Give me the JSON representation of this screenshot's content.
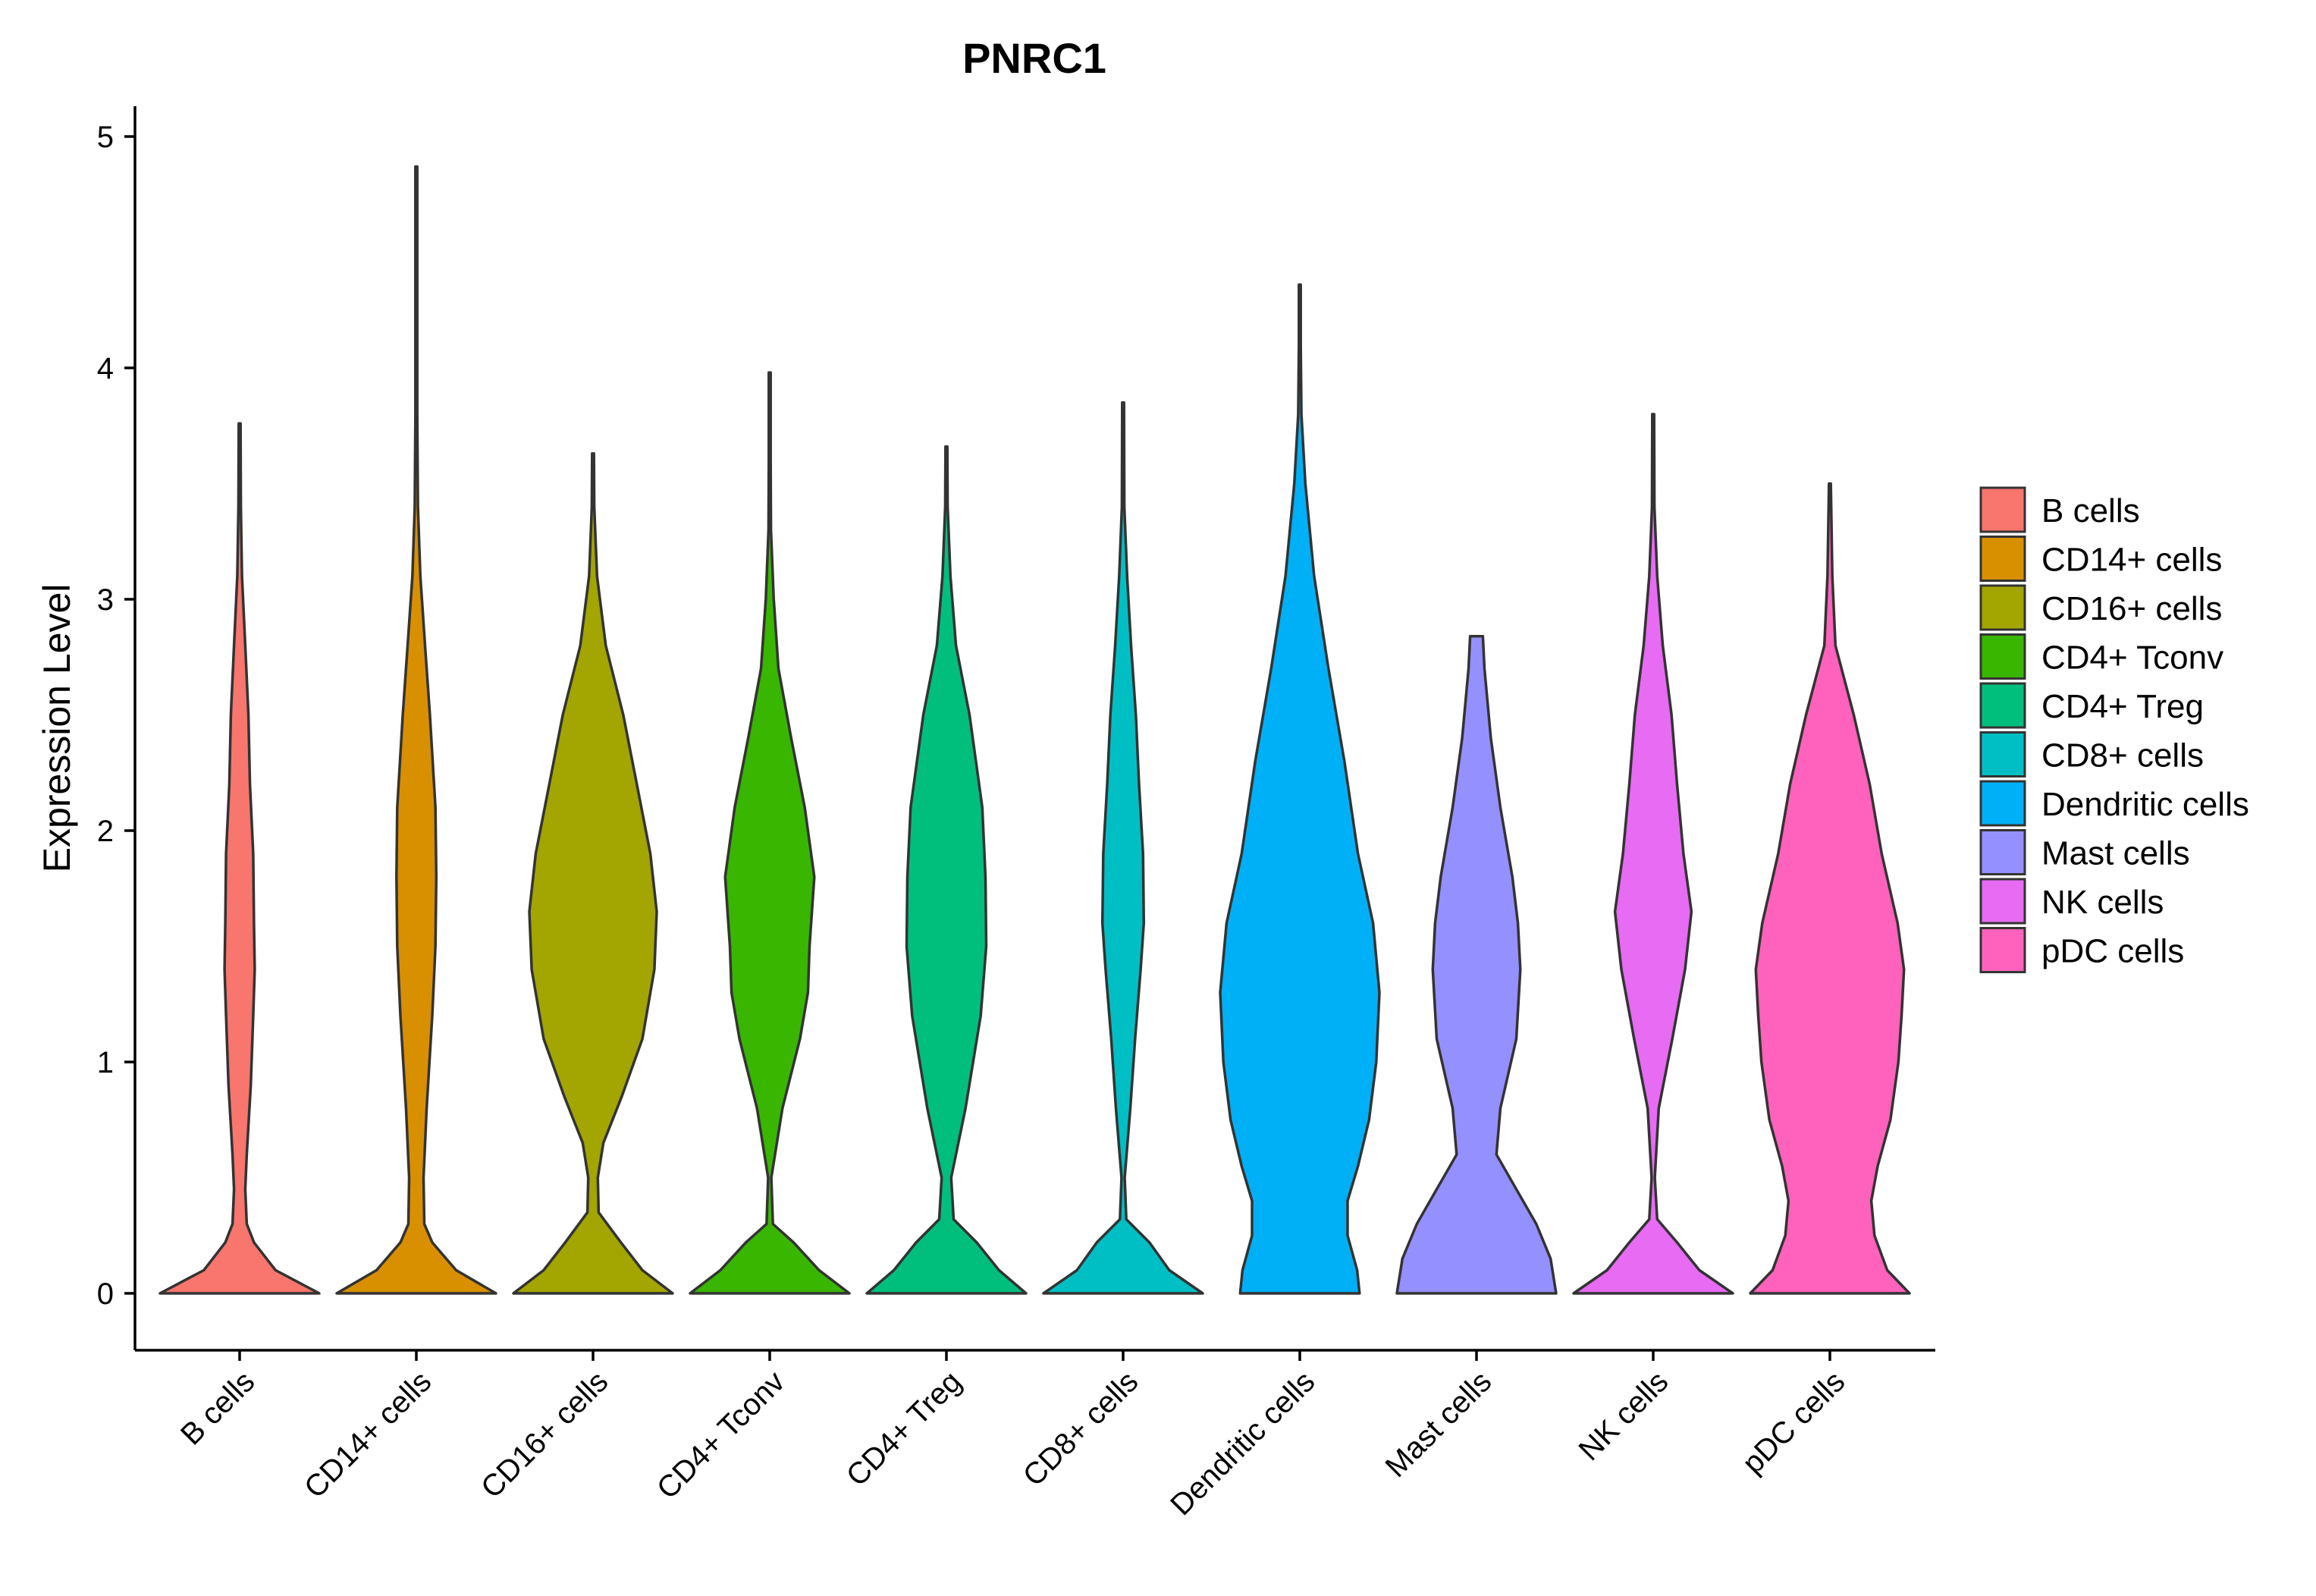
{
  "chart_data": {
    "type": "violin",
    "title": "PNRC1",
    "xlabel": "",
    "ylabel": "Expression Level",
    "ylim": [
      -0.25,
      5.1
    ],
    "yticks": [
      0,
      1,
      2,
      3,
      4,
      5
    ],
    "grid": false,
    "legend_position": "right",
    "categories": [
      "B cells",
      "CD14+ cells",
      "CD16+ cells",
      "CD4+ Tconv",
      "CD4+ Treg",
      "CD8+ cells",
      "Dendritic cells",
      "Mast cells",
      "NK cells",
      "pDC cells"
    ],
    "colors": [
      "#F8766D",
      "#D89000",
      "#A3A500",
      "#39B600",
      "#00BF7D",
      "#00BFC4",
      "#00B0F6",
      "#9590FF",
      "#E76BF3",
      "#FF62BC"
    ],
    "violins": [
      {
        "name": "B cells",
        "max": 3.76,
        "profile": [
          [
            0,
            1.0
          ],
          [
            0.1,
            0.45
          ],
          [
            0.22,
            0.18
          ],
          [
            0.3,
            0.09
          ],
          [
            0.45,
            0.07
          ],
          [
            0.6,
            0.09
          ],
          [
            0.9,
            0.14
          ],
          [
            1.2,
            0.17
          ],
          [
            1.4,
            0.19
          ],
          [
            1.6,
            0.18
          ],
          [
            1.9,
            0.17
          ],
          [
            2.2,
            0.13
          ],
          [
            2.5,
            0.11
          ],
          [
            2.8,
            0.07
          ],
          [
            3.1,
            0.03
          ],
          [
            3.4,
            0.015
          ],
          [
            3.76,
            0.005
          ]
        ]
      },
      {
        "name": "CD14+ cells",
        "max": 4.87,
        "profile": [
          [
            0,
            1.0
          ],
          [
            0.1,
            0.5
          ],
          [
            0.22,
            0.2
          ],
          [
            0.3,
            0.1
          ],
          [
            0.5,
            0.09
          ],
          [
            0.8,
            0.13
          ],
          [
            1.2,
            0.2
          ],
          [
            1.5,
            0.24
          ],
          [
            1.8,
            0.25
          ],
          [
            2.1,
            0.24
          ],
          [
            2.5,
            0.17
          ],
          [
            2.8,
            0.11
          ],
          [
            3.1,
            0.05
          ],
          [
            3.4,
            0.02
          ],
          [
            3.8,
            0.01
          ],
          [
            4.3,
            0.005
          ],
          [
            4.87,
            0.003
          ]
        ]
      },
      {
        "name": "CD16+ cells",
        "max": 3.63,
        "profile": [
          [
            0,
            1.0
          ],
          [
            0.1,
            0.62
          ],
          [
            0.22,
            0.35
          ],
          [
            0.35,
            0.07
          ],
          [
            0.5,
            0.06
          ],
          [
            0.65,
            0.13
          ],
          [
            0.85,
            0.36
          ],
          [
            1.1,
            0.62
          ],
          [
            1.4,
            0.77
          ],
          [
            1.65,
            0.8
          ],
          [
            1.9,
            0.72
          ],
          [
            2.2,
            0.55
          ],
          [
            2.5,
            0.38
          ],
          [
            2.8,
            0.16
          ],
          [
            3.1,
            0.05
          ],
          [
            3.4,
            0.015
          ],
          [
            3.63,
            0.005
          ]
        ]
      },
      {
        "name": "CD4+ Tconv",
        "max": 3.98,
        "profile": [
          [
            0,
            1.0
          ],
          [
            0.1,
            0.62
          ],
          [
            0.22,
            0.3
          ],
          [
            0.3,
            0.04
          ],
          [
            0.5,
            0.02
          ],
          [
            0.8,
            0.16
          ],
          [
            1.1,
            0.38
          ],
          [
            1.3,
            0.48
          ],
          [
            1.5,
            0.5
          ],
          [
            1.8,
            0.56
          ],
          [
            2.1,
            0.44
          ],
          [
            2.4,
            0.27
          ],
          [
            2.7,
            0.11
          ],
          [
            3.0,
            0.05
          ],
          [
            3.3,
            0.015
          ],
          [
            3.6,
            0.008
          ],
          [
            3.98,
            0.003
          ]
        ]
      },
      {
        "name": "CD4+ Treg",
        "max": 3.66,
        "profile": [
          [
            0,
            1.0
          ],
          [
            0.1,
            0.66
          ],
          [
            0.22,
            0.38
          ],
          [
            0.32,
            0.09
          ],
          [
            0.5,
            0.06
          ],
          [
            0.8,
            0.24
          ],
          [
            1.2,
            0.43
          ],
          [
            1.5,
            0.5
          ],
          [
            1.8,
            0.49
          ],
          [
            2.1,
            0.45
          ],
          [
            2.5,
            0.29
          ],
          [
            2.8,
            0.12
          ],
          [
            3.1,
            0.05
          ],
          [
            3.4,
            0.015
          ],
          [
            3.66,
            0.005
          ]
        ]
      },
      {
        "name": "CD8+ cells",
        "max": 3.85,
        "profile": [
          [
            0,
            1.0
          ],
          [
            0.1,
            0.58
          ],
          [
            0.22,
            0.33
          ],
          [
            0.32,
            0.04
          ],
          [
            0.5,
            0.02
          ],
          [
            0.8,
            0.09
          ],
          [
            1.1,
            0.15
          ],
          [
            1.4,
            0.22
          ],
          [
            1.6,
            0.26
          ],
          [
            1.9,
            0.25
          ],
          [
            2.2,
            0.2
          ],
          [
            2.5,
            0.16
          ],
          [
            2.8,
            0.1
          ],
          [
            3.1,
            0.05
          ],
          [
            3.4,
            0.015
          ],
          [
            3.85,
            0.004
          ]
        ]
      },
      {
        "name": "Dendritic cells",
        "max": 4.36,
        "profile": [
          [
            0,
            0.75
          ],
          [
            0.1,
            0.72
          ],
          [
            0.25,
            0.6
          ],
          [
            0.4,
            0.6
          ],
          [
            0.55,
            0.73
          ],
          [
            0.75,
            0.87
          ],
          [
            1.0,
            0.96
          ],
          [
            1.3,
            1.0
          ],
          [
            1.6,
            0.92
          ],
          [
            1.9,
            0.73
          ],
          [
            2.3,
            0.56
          ],
          [
            2.7,
            0.36
          ],
          [
            3.1,
            0.18
          ],
          [
            3.5,
            0.07
          ],
          [
            3.8,
            0.02
          ],
          [
            4.1,
            0.008
          ],
          [
            4.36,
            0.003
          ]
        ]
      },
      {
        "name": "Mast cells",
        "max": 2.84,
        "profile": [
          [
            0,
            1.0
          ],
          [
            0.15,
            0.93
          ],
          [
            0.3,
            0.75
          ],
          [
            0.45,
            0.5
          ],
          [
            0.6,
            0.25
          ],
          [
            0.8,
            0.3
          ],
          [
            1.1,
            0.5
          ],
          [
            1.4,
            0.55
          ],
          [
            1.6,
            0.52
          ],
          [
            1.8,
            0.45
          ],
          [
            2.1,
            0.3
          ],
          [
            2.4,
            0.18
          ],
          [
            2.7,
            0.1
          ],
          [
            2.84,
            0.08
          ]
        ]
      },
      {
        "name": "NK cells",
        "max": 3.8,
        "profile": [
          [
            0,
            1.0
          ],
          [
            0.1,
            0.58
          ],
          [
            0.22,
            0.3
          ],
          [
            0.32,
            0.05
          ],
          [
            0.5,
            0.02
          ],
          [
            0.8,
            0.07
          ],
          [
            1.1,
            0.24
          ],
          [
            1.4,
            0.4
          ],
          [
            1.65,
            0.48
          ],
          [
            1.9,
            0.38
          ],
          [
            2.2,
            0.3
          ],
          [
            2.5,
            0.23
          ],
          [
            2.8,
            0.12
          ],
          [
            3.1,
            0.05
          ],
          [
            3.4,
            0.015
          ],
          [
            3.8,
            0.004
          ]
        ]
      },
      {
        "name": "pDC cells",
        "max": 3.5,
        "profile": [
          [
            0,
            1.0
          ],
          [
            0.1,
            0.72
          ],
          [
            0.25,
            0.56
          ],
          [
            0.4,
            0.52
          ],
          [
            0.55,
            0.6
          ],
          [
            0.75,
            0.76
          ],
          [
            1.0,
            0.86
          ],
          [
            1.2,
            0.9
          ],
          [
            1.4,
            0.93
          ],
          [
            1.6,
            0.85
          ],
          [
            1.9,
            0.65
          ],
          [
            2.2,
            0.5
          ],
          [
            2.5,
            0.3
          ],
          [
            2.8,
            0.07
          ],
          [
            3.1,
            0.03
          ],
          [
            3.5,
            0.005
          ]
        ]
      }
    ]
  }
}
